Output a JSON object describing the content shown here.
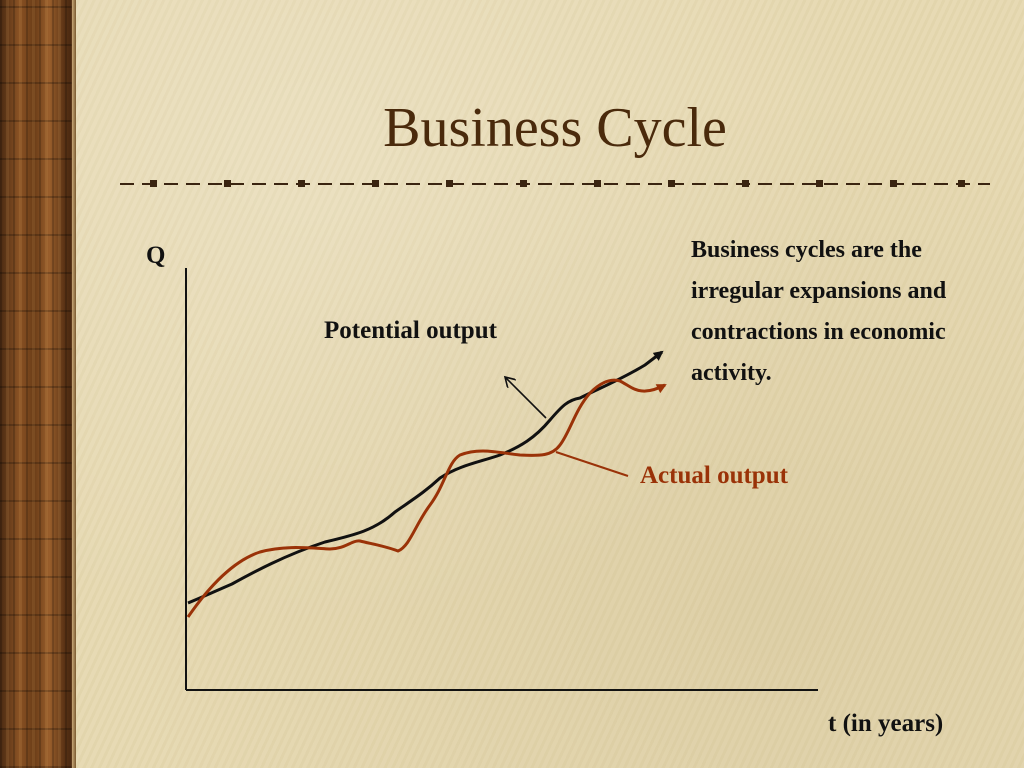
{
  "slide": {
    "title": "Business Cycle",
    "description": "Business cycles are the irregular expansions and contractions in economic activity."
  },
  "diagram": {
    "y_axis_label": "Q",
    "x_axis_label": "t (in years)",
    "potential_label": "Potential output",
    "actual_label": "Actual output"
  },
  "colors": {
    "title": "#4a2a0c",
    "potential_line": "#111111",
    "actual_line": "#9a3208",
    "background": "#e6d9b1"
  }
}
